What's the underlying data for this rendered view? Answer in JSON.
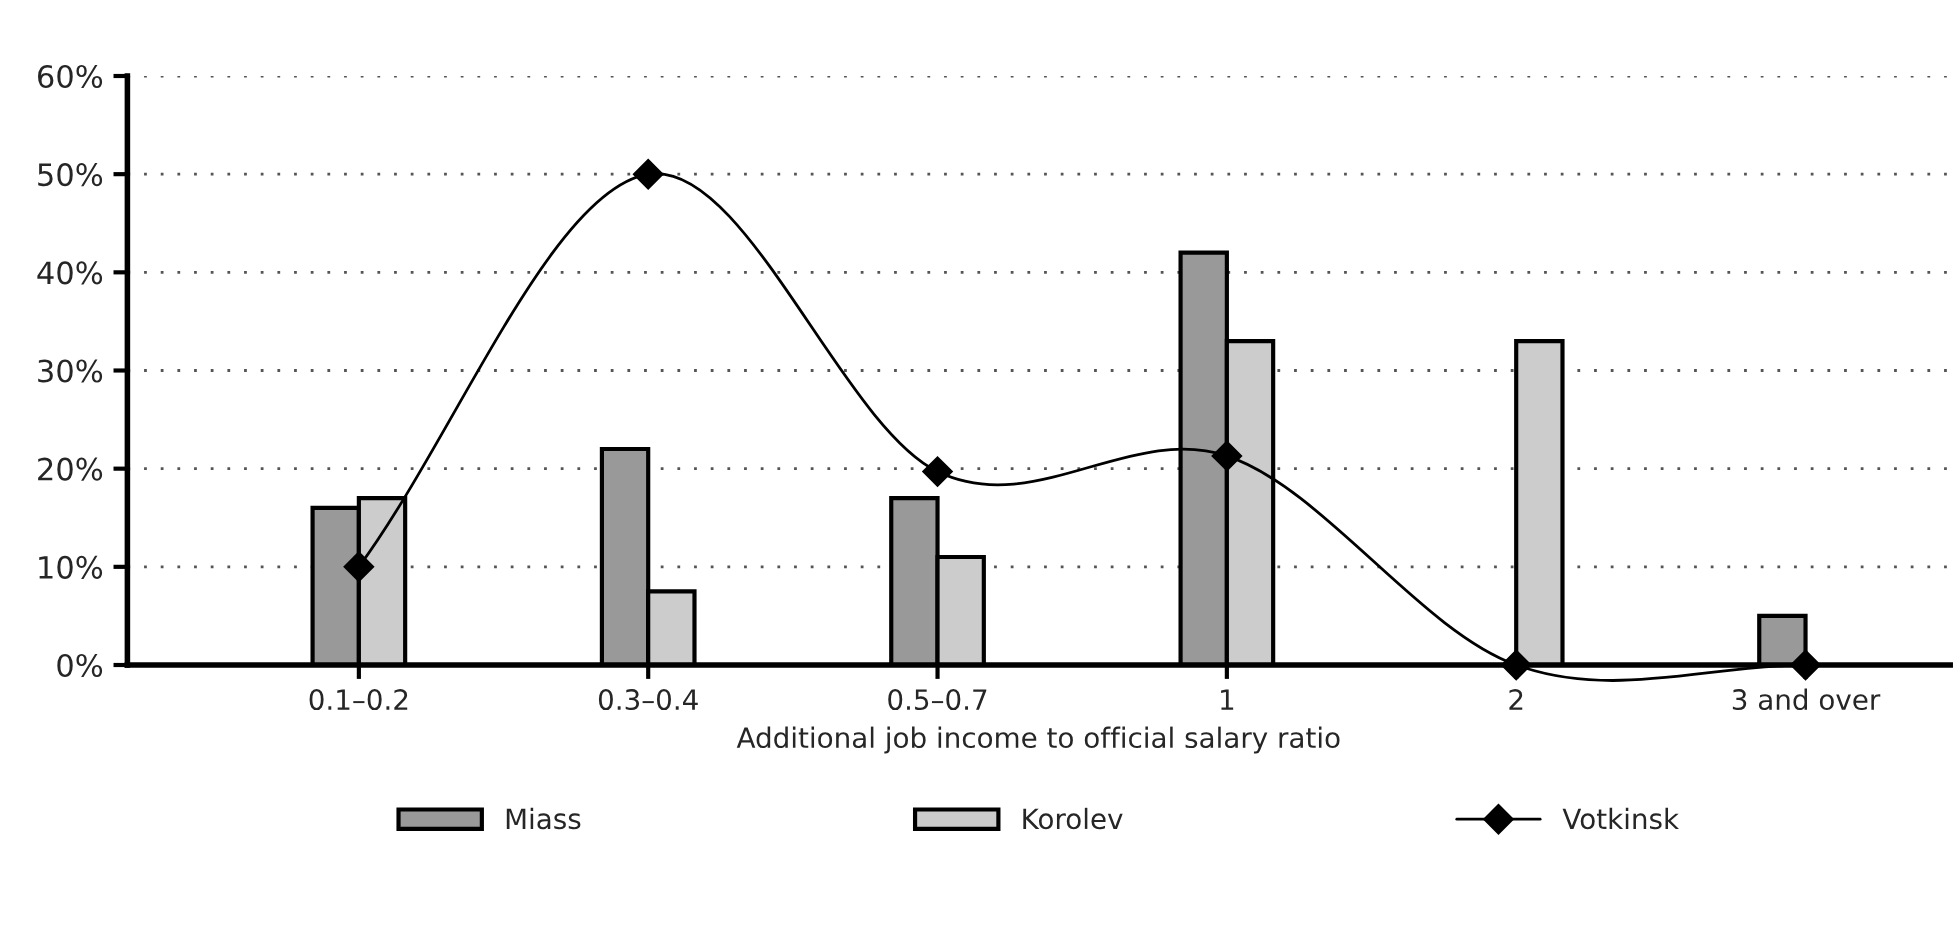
{
  "chart_data": {
    "type": "bar",
    "xlabel": "Additional job income to official salary ratio",
    "categories": [
      "0.1–0.2",
      "0.3–0.4",
      "0.5–0.7",
      "1",
      "2",
      "3 and over"
    ],
    "series": [
      {
        "name": "Miass",
        "color": "#999999",
        "values": [
          16,
          22,
          17,
          42,
          0,
          5
        ]
      },
      {
        "name": "Korolev",
        "color": "#cccccc",
        "values": [
          17,
          7.5,
          11,
          33,
          33,
          0
        ]
      },
      {
        "name": "Votkinsk",
        "type": "line",
        "color": "#000000",
        "marker": "diamond",
        "values": [
          10,
          50,
          19.7,
          21.3,
          0,
          0
        ]
      }
    ],
    "ylim": [
      0,
      60
    ],
    "yticks": [
      {
        "value": 0,
        "label": "0%"
      },
      {
        "value": 10,
        "label": "10%"
      },
      {
        "value": 20,
        "label": "20%"
      },
      {
        "value": 30,
        "label": "30%"
      },
      {
        "value": 40,
        "label": "40%"
      },
      {
        "value": 50,
        "label": "50%"
      },
      {
        "value": 60,
        "label": "60%"
      }
    ],
    "grid": "y",
    "legend": "bottom"
  }
}
